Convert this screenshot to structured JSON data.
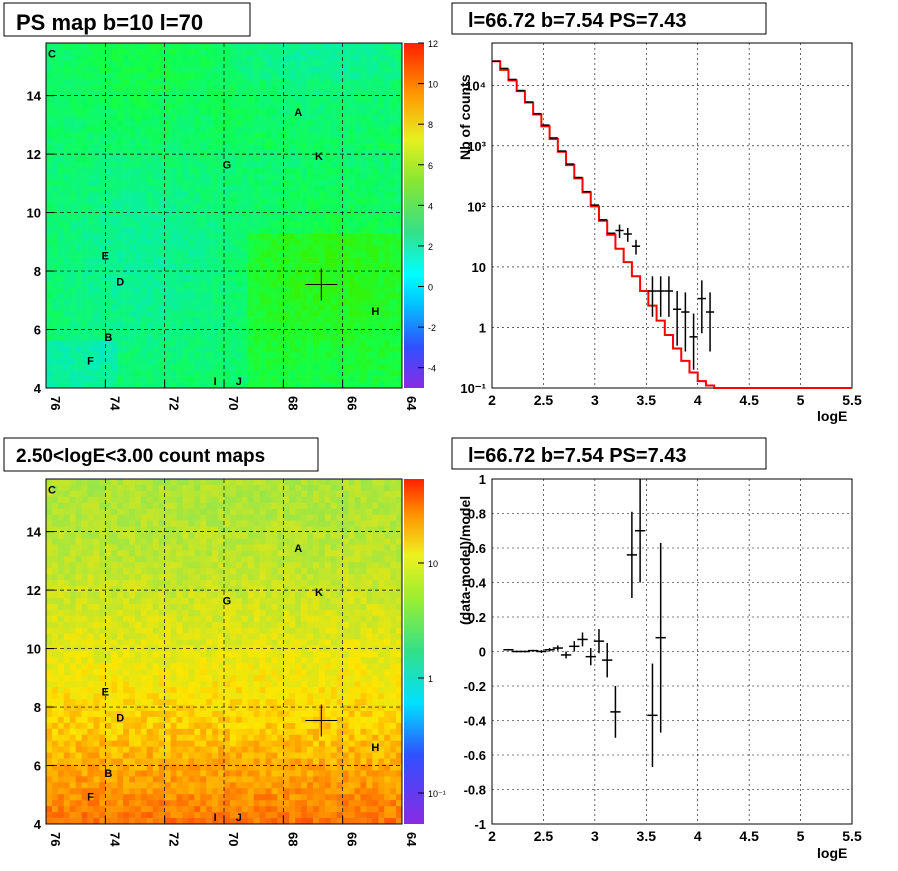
{
  "panels": {
    "tl_title": "PS map b=10 l=70",
    "tr_title": "l=66.72 b=7.54 PS=7.43",
    "bl_title": "2.50<logE<3.00 count maps",
    "br_title": "l=66.72 b=7.54 PS=7.43"
  },
  "colors": {
    "hist_line": "#ff0000",
    "data_marker": "#000000",
    "grid": "#000000"
  },
  "chart_data": [
    {
      "id": "ps_map",
      "type": "heatmap",
      "title": "PS map b=10 l=70",
      "x_ticks": [
        "76",
        "74",
        "72",
        "70",
        "68",
        "66",
        "64"
      ],
      "y_ticks": [
        "4",
        "6",
        "8",
        "10",
        "12",
        "14"
      ],
      "xlim": [
        76,
        64
      ],
      "ylim": [
        4,
        15.8
      ],
      "colorbar_ticks": [
        "12",
        "10",
        "8",
        "6",
        "4",
        "2",
        "0",
        "-2",
        "-4"
      ],
      "colorbar_range": [
        -5,
        12
      ],
      "sources": [
        {
          "label": "C",
          "l": 75.8,
          "b": 15.3
        },
        {
          "label": "A",
          "l": 67.5,
          "b": 13.3
        },
        {
          "label": "K",
          "l": 66.8,
          "b": 11.8
        },
        {
          "label": "G",
          "l": 69.9,
          "b": 11.5
        },
        {
          "label": "E",
          "l": 74.0,
          "b": 8.4
        },
        {
          "label": "D",
          "l": 73.5,
          "b": 7.5
        },
        {
          "label": "H",
          "l": 64.9,
          "b": 6.5
        },
        {
          "label": "B",
          "l": 73.9,
          "b": 5.6
        },
        {
          "label": "F",
          "l": 74.5,
          "b": 4.8
        },
        {
          "label": "I",
          "l": 70.3,
          "b": 4.1
        },
        {
          "label": "J",
          "l": 69.5,
          "b": 4.1
        }
      ],
      "marker": {
        "l": 66.72,
        "b": 7.54
      }
    },
    {
      "id": "spectrum",
      "type": "line",
      "title": "l=66.72 b=7.54 PS=7.43",
      "xlabel": "logE",
      "ylabel": "Nb of counts",
      "x_ticks": [
        "2",
        "2.5",
        "3",
        "3.5",
        "4",
        "4.5",
        "5",
        "5.5"
      ],
      "y_ticks": [
        "10⁻¹",
        "1",
        "10",
        "10²",
        "10³",
        "10⁴"
      ],
      "y_scale": "log",
      "xlim": [
        2,
        5.5
      ],
      "ylim": [
        0.1,
        50000
      ],
      "series": [
        {
          "style": "step",
          "x": [
            2.0,
            2.08,
            2.16,
            2.24,
            2.32,
            2.4,
            2.48,
            2.56,
            2.64,
            2.72,
            2.8,
            2.88,
            2.96,
            3.04,
            3.12,
            3.2,
            3.28,
            3.36,
            3.44,
            3.52,
            3.6,
            3.68,
            3.76,
            3.84,
            3.92,
            4.0,
            4.08,
            4.16,
            4.24,
            5.5
          ],
          "y": [
            25000,
            18000,
            12000,
            8000,
            5200,
            3300,
            2100,
            1300,
            800,
            480,
            290,
            170,
            100,
            58,
            34,
            20,
            12,
            7,
            4,
            2.3,
            1.3,
            0.75,
            0.45,
            0.28,
            0.18,
            0.13,
            0.11,
            0.1,
            0.1,
            0.1
          ]
        },
        {
          "style": "errorbar",
          "x": [
            2.04,
            2.12,
            2.2,
            2.28,
            2.36,
            2.44,
            2.52,
            2.6,
            2.68,
            2.76,
            2.84,
            2.92,
            3.0,
            3.08,
            3.16,
            3.24,
            3.32,
            3.4,
            3.48,
            3.56,
            3.64,
            3.72,
            3.8,
            3.88,
            3.96,
            4.04,
            4.12
          ],
          "y": [
            25000,
            19000,
            12500,
            8200,
            5300,
            3400,
            2200,
            1350,
            820,
            500,
            300,
            175,
            105,
            60,
            36,
            40,
            35,
            22,
            null,
            4,
            4,
            4,
            2,
            1.8,
            0.7,
            3,
            1.8
          ],
          "yerr_lo": [
            0,
            0,
            0,
            0,
            0,
            0,
            0,
            0,
            0,
            0,
            0,
            0,
            0,
            0,
            0,
            10,
            9,
            6,
            null,
            2.5,
            2.5,
            2.5,
            1.5,
            1.4,
            0.5,
            2.2,
            1.4
          ],
          "yerr_hi": [
            0,
            0,
            0,
            0,
            0,
            0,
            0,
            0,
            0,
            0,
            0,
            0,
            0,
            0,
            0,
            10,
            9,
            6,
            null,
            3,
            3,
            3,
            2,
            2,
            1,
            3,
            2
          ]
        }
      ]
    },
    {
      "id": "count_map",
      "type": "heatmap",
      "title": "2.50<logE<3.00 count maps",
      "x_ticks": [
        "76",
        "74",
        "72",
        "70",
        "68",
        "66",
        "64"
      ],
      "y_ticks": [
        "4",
        "6",
        "8",
        "10",
        "12",
        "14"
      ],
      "xlim": [
        76,
        64
      ],
      "ylim": [
        4,
        15.8
      ],
      "colorbar_ticks": [
        "10",
        "1",
        "10⁻¹"
      ],
      "colorbar_scale": "log",
      "sources": [
        {
          "label": "C",
          "l": 75.8,
          "b": 15.3
        },
        {
          "label": "A",
          "l": 67.5,
          "b": 13.3
        },
        {
          "label": "K",
          "l": 66.8,
          "b": 11.8
        },
        {
          "label": "G",
          "l": 69.9,
          "b": 11.5
        },
        {
          "label": "E",
          "l": 74.0,
          "b": 8.4
        },
        {
          "label": "D",
          "l": 73.5,
          "b": 7.5
        },
        {
          "label": "H",
          "l": 64.9,
          "b": 6.5
        },
        {
          "label": "B",
          "l": 73.9,
          "b": 5.6
        },
        {
          "label": "F",
          "l": 74.5,
          "b": 4.8
        },
        {
          "label": "I",
          "l": 70.3,
          "b": 4.1
        },
        {
          "label": "J",
          "l": 69.5,
          "b": 4.1
        }
      ],
      "marker": {
        "l": 66.72,
        "b": 7.54
      }
    },
    {
      "id": "residuals",
      "type": "scatter",
      "title": "l=66.72 b=7.54 PS=7.43",
      "xlabel": "logE",
      "ylabel": "(data-model)/model",
      "x_ticks": [
        "2",
        "2.5",
        "3",
        "3.5",
        "4",
        "4.5",
        "5",
        "5.5"
      ],
      "y_ticks": [
        "-1",
        "-0.8",
        "-0.6",
        "-0.4",
        "-0.2",
        "0",
        "0.2",
        "0.4",
        "0.6",
        "0.8",
        "1"
      ],
      "xlim": [
        2,
        5.5
      ],
      "ylim": [
        -1,
        1
      ],
      "series": [
        {
          "style": "errorbar",
          "x": [
            2.16,
            2.24,
            2.32,
            2.4,
            2.48,
            2.56,
            2.64,
            2.72,
            2.8,
            2.88,
            2.96,
            3.04,
            3.12,
            3.2,
            3.36,
            3.44,
            3.56,
            3.64
          ],
          "y": [
            0.01,
            0.0,
            0.0,
            0.005,
            0.0,
            0.01,
            0.02,
            -0.02,
            0.03,
            0.07,
            -0.03,
            0.06,
            -0.05,
            -0.35,
            0.56,
            0.7,
            -0.37,
            0.08
          ],
          "yerr": [
            0.005,
            0.005,
            0.005,
            0.005,
            0.008,
            0.01,
            0.015,
            0.02,
            0.03,
            0.04,
            0.05,
            0.07,
            0.1,
            0.15,
            0.25,
            0.3,
            0.3,
            0.55
          ]
        }
      ]
    }
  ]
}
